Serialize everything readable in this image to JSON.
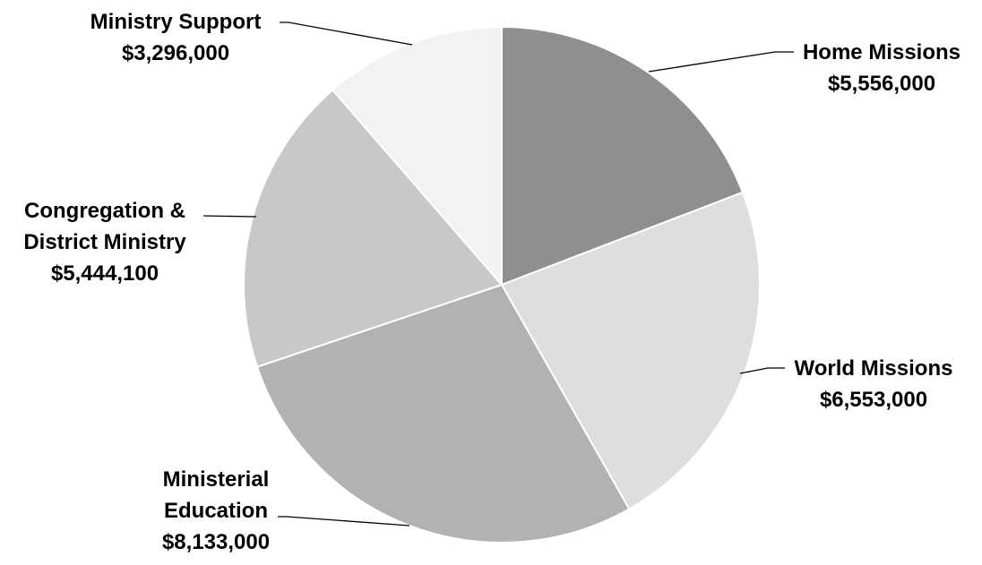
{
  "chart_data": {
    "type": "pie",
    "title": "",
    "slices": [
      {
        "name": "Home Missions",
        "label_lines": [
          "Home Missions"
        ],
        "value_label": "$5,556,000",
        "value": 5556000,
        "color": "#8f8f8f"
      },
      {
        "name": "World Missions",
        "label_lines": [
          "World Missions"
        ],
        "value_label": "$6,553,000",
        "value": 6553000,
        "color": "#dedede"
      },
      {
        "name": "Ministerial Education",
        "label_lines": [
          "Ministerial",
          "Education"
        ],
        "value_label": "$8,133,000",
        "value": 8133000,
        "color": "#b2b2b2"
      },
      {
        "name": "Congregation & District Ministry",
        "label_lines": [
          "Congregation &",
          "District Ministry"
        ],
        "value_label": "$5,444,100",
        "value": 5444100,
        "color": "#c8c8c8"
      },
      {
        "name": "Ministry Support",
        "label_lines": [
          "Ministry Support"
        ],
        "value_label": "$3,296,000",
        "value": 3296000,
        "color": "#f2f2f2"
      }
    ]
  }
}
